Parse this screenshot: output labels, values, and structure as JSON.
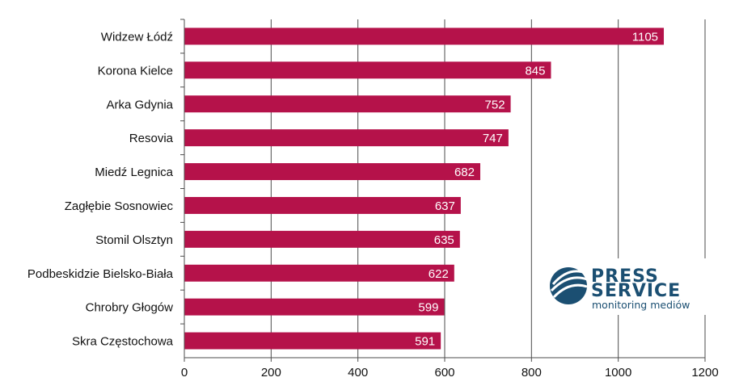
{
  "chart_data": {
    "type": "bar",
    "orientation": "horizontal",
    "categories": [
      "Widzew Łódź",
      "Korona Kielce",
      "Arka Gdynia ",
      "Resovia",
      "Miedź Legnica",
      "Zagłębie Sosnowiec",
      "Stomil Olsztyn",
      "Podbeskidzie Bielsko-Biała",
      "Chrobry Głogów",
      "Skra Częstochowa"
    ],
    "values": [
      1105,
      845,
      752,
      747,
      682,
      637,
      635,
      622,
      599,
      591
    ],
    "xlim": [
      0,
      1200
    ],
    "xticks": [
      0,
      200,
      400,
      600,
      800,
      1000,
      1200
    ],
    "grid": "vertical",
    "bar_color": "#b5124a",
    "data_labels": true,
    "title": "",
    "xlabel": "",
    "ylabel": ""
  },
  "logo": {
    "line1": "PRESS",
    "line2": "SERVICE",
    "tagline": "monitoring mediów",
    "color": "#1b4f72"
  }
}
